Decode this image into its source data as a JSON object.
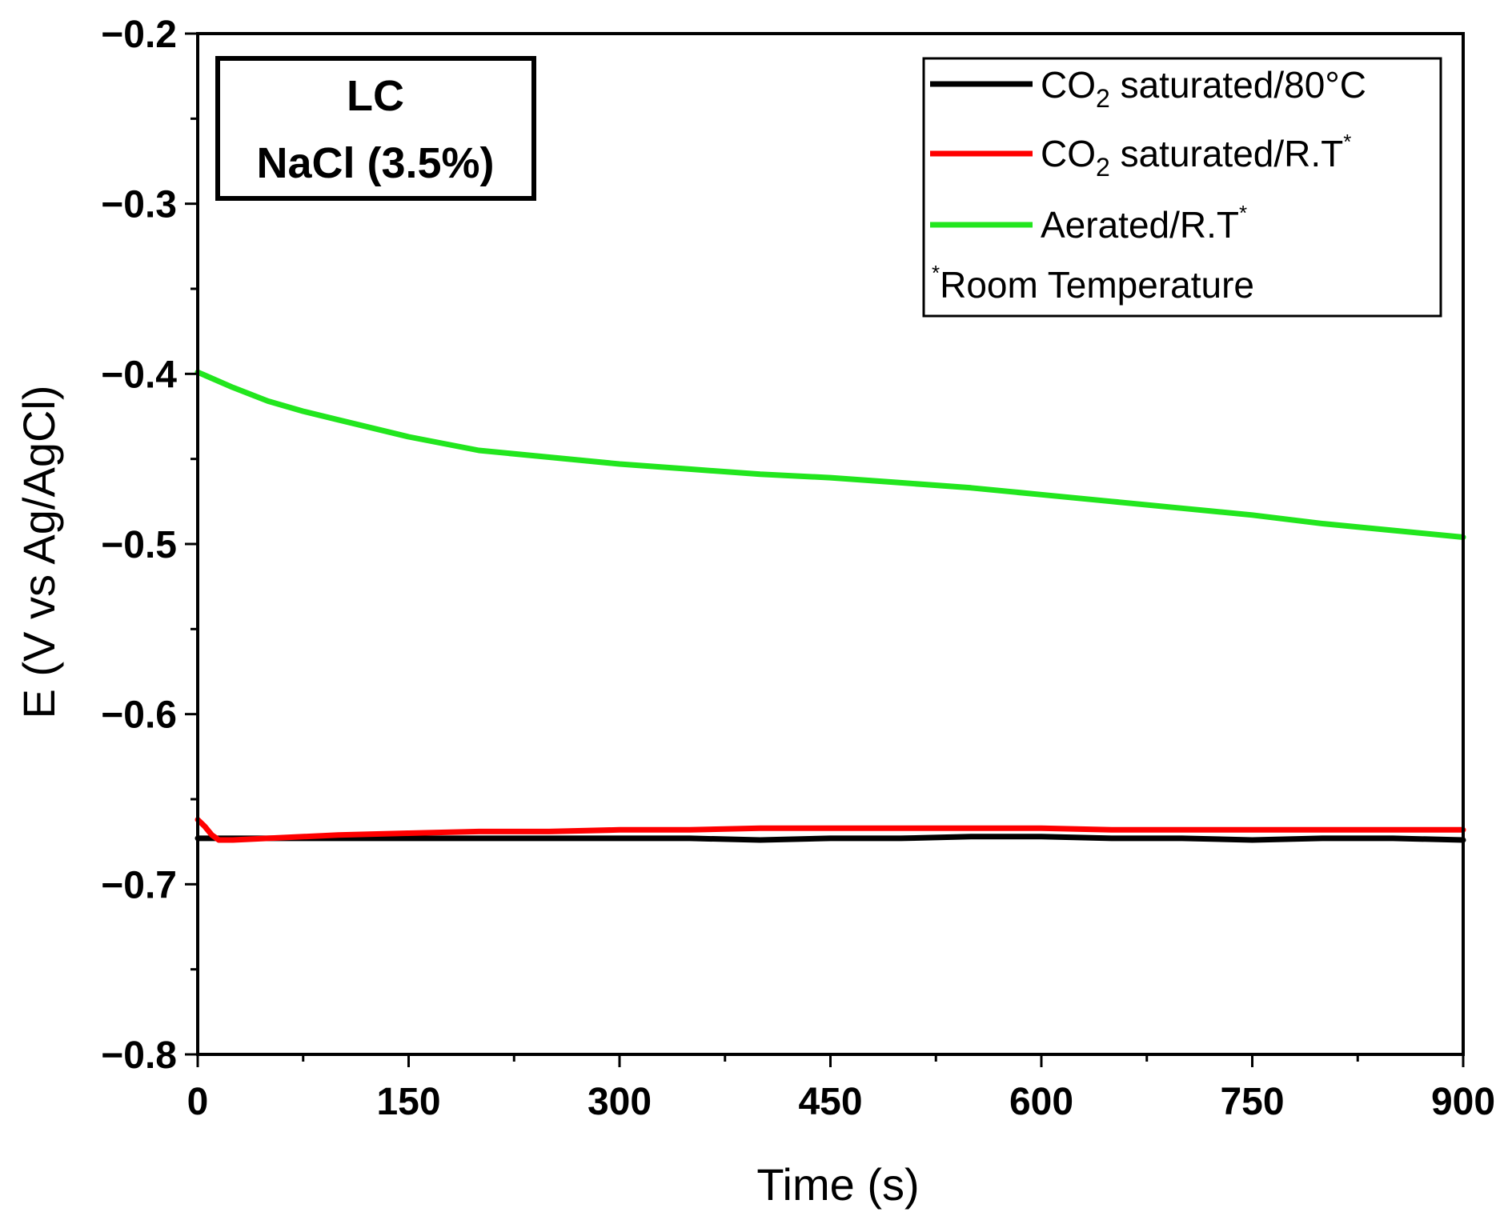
{
  "chart_data": {
    "type": "line",
    "title": "",
    "xlabel": "Time (s)",
    "ylabel": "E (V vs Ag/AgCl)",
    "xlim": [
      0,
      900
    ],
    "ylim": [
      -0.8,
      -0.2
    ],
    "xticks": [
      0,
      150,
      300,
      450,
      600,
      750,
      900
    ],
    "xtick_labels": [
      "0",
      "150",
      "300",
      "450",
      "600",
      "750",
      "900"
    ],
    "yticks": [
      -0.8,
      -0.7,
      -0.6,
      -0.5,
      -0.4,
      -0.3,
      -0.2
    ],
    "ytick_labels": [
      "−0.8",
      "−0.7",
      "−0.6",
      "−0.5",
      "−0.4",
      "−0.3",
      "−0.2"
    ],
    "grid": false,
    "legend_position": "top-right",
    "annotation": {
      "line1": "LC",
      "line2": "NaCl (3.5%)",
      "position": "top-left"
    },
    "legend": {
      "note_star": "*",
      "note_text": "Room Temperature",
      "entries": [
        {
          "prefix": "CO",
          "sub": "2",
          "suffix": " saturated/80°C",
          "sup": ""
        },
        {
          "prefix": "CO",
          "sub": "2",
          "suffix": " saturated/R.T",
          "sup": "*"
        },
        {
          "prefix": "Aerated/R.T",
          "sub": "",
          "suffix": "",
          "sup": "*"
        }
      ]
    },
    "series": [
      {
        "name": "CO2 saturated/80°C",
        "color": "#000000",
        "x": [
          0,
          10,
          30,
          60,
          100,
          150,
          200,
          250,
          300,
          350,
          400,
          450,
          500,
          550,
          600,
          650,
          700,
          750,
          800,
          850,
          900
        ],
        "y": [
          -0.673,
          -0.673,
          -0.673,
          -0.673,
          -0.673,
          -0.673,
          -0.673,
          -0.673,
          -0.673,
          -0.673,
          -0.674,
          -0.673,
          -0.673,
          -0.672,
          -0.672,
          -0.673,
          -0.673,
          -0.674,
          -0.673,
          -0.673,
          -0.674
        ]
      },
      {
        "name": "CO2 saturated/R.T*",
        "color": "#ff0000",
        "x": [
          0,
          5,
          10,
          15,
          25,
          50,
          100,
          150,
          200,
          250,
          300,
          350,
          400,
          450,
          500,
          550,
          600,
          650,
          700,
          750,
          800,
          850,
          900
        ],
        "y": [
          -0.662,
          -0.666,
          -0.671,
          -0.674,
          -0.674,
          -0.673,
          -0.671,
          -0.67,
          -0.669,
          -0.669,
          -0.668,
          -0.668,
          -0.667,
          -0.667,
          -0.667,
          -0.667,
          -0.667,
          -0.668,
          -0.668,
          -0.668,
          -0.668,
          -0.668,
          -0.668
        ]
      },
      {
        "name": "Aerated/R.T*",
        "color": "#22e61e",
        "x": [
          0,
          25,
          50,
          75,
          100,
          150,
          200,
          250,
          300,
          350,
          400,
          450,
          500,
          550,
          600,
          650,
          700,
          750,
          800,
          850,
          900
        ],
        "y": [
          -0.399,
          -0.408,
          -0.416,
          -0.422,
          -0.427,
          -0.437,
          -0.445,
          -0.449,
          -0.453,
          -0.456,
          -0.459,
          -0.461,
          -0.464,
          -0.467,
          -0.471,
          -0.475,
          -0.479,
          -0.483,
          -0.488,
          -0.492,
          -0.496
        ]
      }
    ]
  }
}
